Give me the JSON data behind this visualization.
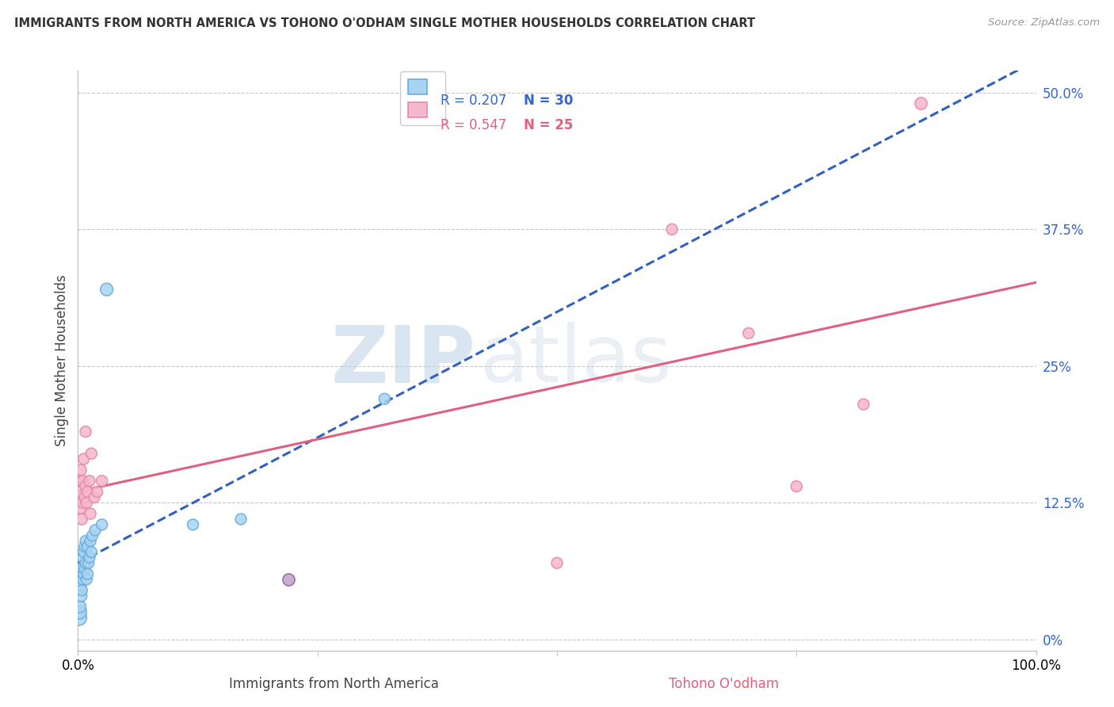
{
  "title": "IMMIGRANTS FROM NORTH AMERICA VS TOHONO O'ODHAM SINGLE MOTHER HOUSEHOLDS CORRELATION CHART",
  "source": "Source: ZipAtlas.com",
  "xlabel_left": "Immigrants from North America",
  "xlabel_right": "Tohono O'odham",
  "ylabel": "Single Mother Households",
  "watermark_zip": "ZIP",
  "watermark_atlas": "atlas",
  "legend_r_blue": "R = 0.207",
  "legend_n_blue": "N = 30",
  "legend_r_pink": "R = 0.547",
  "legend_n_pink": "N = 25",
  "blue_fill": "#A8D4F0",
  "blue_edge": "#6AACE0",
  "pink_fill": "#F5B8CC",
  "pink_edge": "#E888A8",
  "purple_fill": "#C0A0C8",
  "blue_line_color": "#3060C0",
  "pink_line_color": "#E06080",
  "xlim": [
    0,
    1.0
  ],
  "ylim": [
    -0.01,
    0.52
  ],
  "yticks": [
    0.0,
    0.125,
    0.25,
    0.375,
    0.5
  ],
  "ytick_labels": [
    "0%",
    "12.5%",
    "25%",
    "37.5%",
    "50.0%"
  ],
  "blue_x": [
    0.001,
    0.002,
    0.002,
    0.003,
    0.003,
    0.003,
    0.004,
    0.004,
    0.005,
    0.005,
    0.006,
    0.006,
    0.007,
    0.007,
    0.008,
    0.008,
    0.009,
    0.01,
    0.01,
    0.011,
    0.012,
    0.013,
    0.014,
    0.015,
    0.018,
    0.025,
    0.03,
    0.12,
    0.17,
    0.32
  ],
  "blue_y": [
    0.02,
    0.025,
    0.03,
    0.04,
    0.05,
    0.06,
    0.045,
    0.065,
    0.055,
    0.075,
    0.06,
    0.08,
    0.065,
    0.085,
    0.07,
    0.09,
    0.055,
    0.06,
    0.085,
    0.07,
    0.075,
    0.09,
    0.08,
    0.095,
    0.1,
    0.105,
    0.32,
    0.105,
    0.11,
    0.22
  ],
  "blue_sizes": [
    200,
    150,
    120,
    120,
    100,
    100,
    100,
    100,
    100,
    100,
    100,
    100,
    100,
    100,
    100,
    100,
    100,
    100,
    100,
    100,
    100,
    100,
    100,
    100,
    100,
    100,
    130,
    100,
    100,
    100
  ],
  "pink_x": [
    0.001,
    0.002,
    0.003,
    0.003,
    0.004,
    0.005,
    0.005,
    0.006,
    0.007,
    0.008,
    0.008,
    0.009,
    0.01,
    0.012,
    0.013,
    0.014,
    0.017,
    0.02,
    0.025,
    0.5,
    0.62,
    0.7,
    0.75,
    0.82,
    0.88
  ],
  "pink_y": [
    0.135,
    0.145,
    0.12,
    0.155,
    0.11,
    0.125,
    0.145,
    0.165,
    0.13,
    0.14,
    0.19,
    0.125,
    0.135,
    0.145,
    0.115,
    0.17,
    0.13,
    0.135,
    0.145,
    0.07,
    0.375,
    0.28,
    0.14,
    0.215,
    0.49
  ],
  "pink_sizes": [
    100,
    100,
    100,
    100,
    100,
    100,
    100,
    100,
    100,
    100,
    100,
    100,
    100,
    100,
    100,
    100,
    100,
    100,
    100,
    100,
    100,
    100,
    100,
    100,
    120
  ],
  "purple_x": [
    0.22
  ],
  "purple_y": [
    0.055
  ],
  "purple_size": [
    120
  ]
}
